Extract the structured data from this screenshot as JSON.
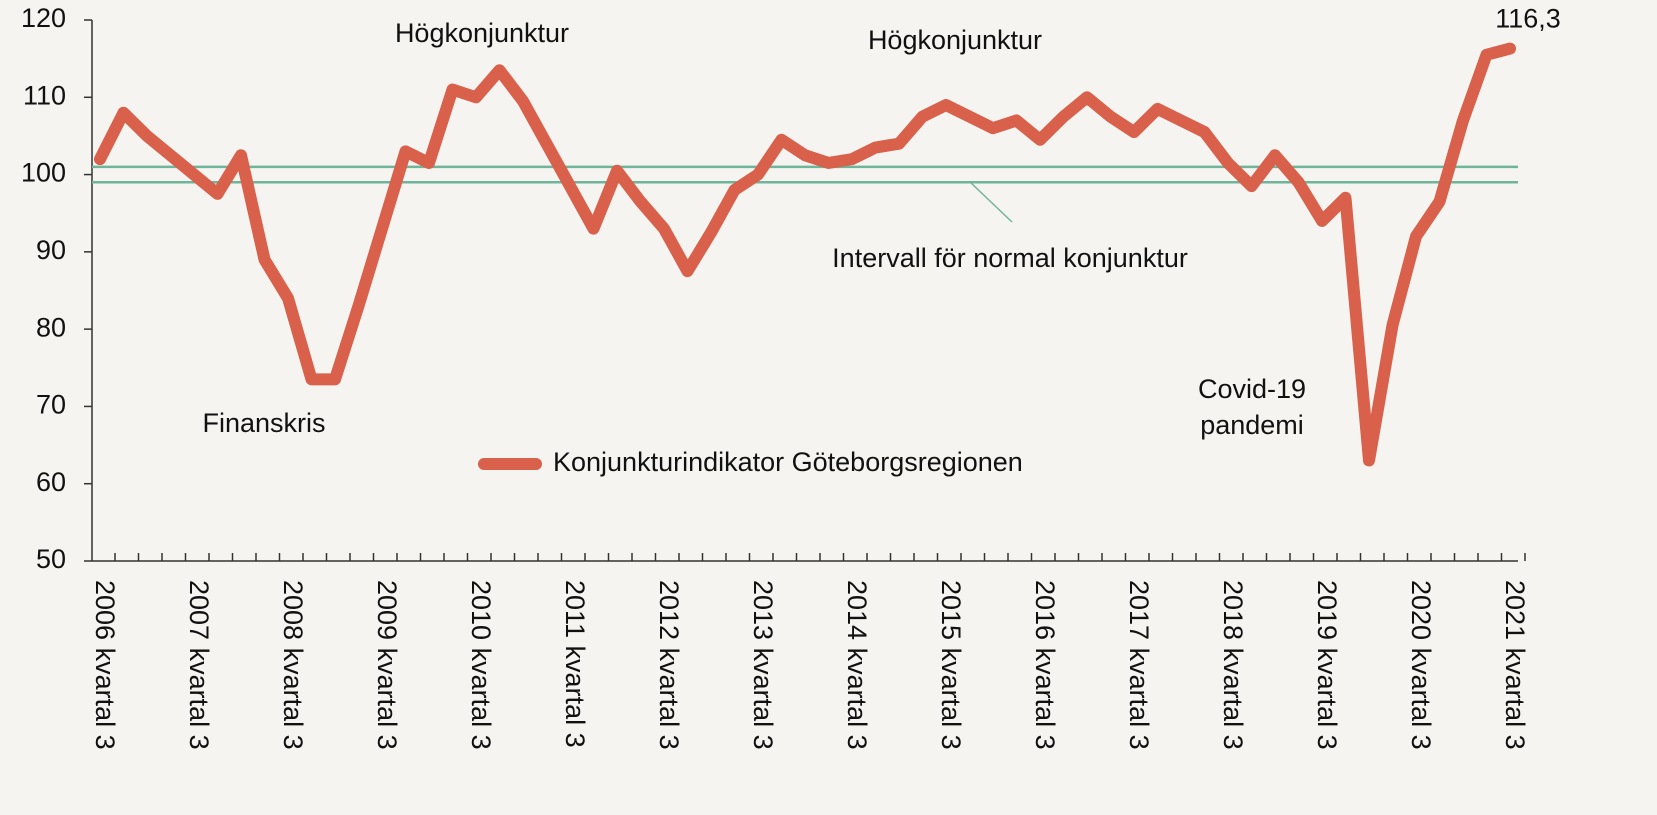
{
  "chart_data": {
    "type": "line",
    "categories": [
      "2006 kvartal 3",
      null,
      null,
      null,
      "2007 kvartal 3",
      null,
      null,
      null,
      "2008 kvartal 3",
      null,
      null,
      null,
      "2009 kvartal 3",
      null,
      null,
      null,
      "2010 kvartal 3",
      null,
      null,
      null,
      "2011 kvartal 3",
      null,
      null,
      null,
      "2012 kvartal 3",
      null,
      null,
      null,
      "2013 kvartal 3",
      null,
      null,
      null,
      "2014 kvartal 3",
      null,
      null,
      null,
      "2015 kvartal 3",
      null,
      null,
      null,
      "2016 kvartal 3",
      null,
      null,
      null,
      "2017 kvartal 3",
      null,
      null,
      null,
      "2018 kvartal 3",
      null,
      null,
      null,
      "2019 kvartal 3",
      null,
      null,
      null,
      "2020 kvartal 3",
      null,
      null,
      null,
      "2021 kvartal 3"
    ],
    "series": [
      {
        "name": "Konjunkturindikator Göteborgsregionen",
        "color": "#d9604a",
        "values": [
          102,
          108,
          105,
          102.5,
          100,
          97.5,
          102.5,
          89,
          84,
          73.5,
          73.5,
          83,
          93,
          103,
          101.5,
          111,
          110,
          113.5,
          109.5,
          104,
          98.5,
          93,
          100.5,
          96.5,
          93,
          87.5,
          92.5,
          98,
          100,
          104.5,
          102.5,
          101.5,
          102,
          103.5,
          104,
          107.5,
          109,
          107.5,
          106,
          107,
          104.5,
          107.5,
          110,
          107.5,
          105.5,
          108.5,
          107,
          105.5,
          101.5,
          98.5,
          102.5,
          99,
          94,
          97,
          63,
          80.5,
          92,
          96.5,
          107,
          115.5,
          116.3
        ],
        "value_labels": [
          null,
          null,
          null,
          null,
          null,
          null,
          null,
          null,
          null,
          null,
          null,
          null,
          null,
          null,
          null,
          null,
          null,
          null,
          null,
          null,
          null,
          null,
          null,
          null,
          null,
          null,
          null,
          null,
          null,
          null,
          null,
          null,
          null,
          null,
          null,
          null,
          null,
          null,
          null,
          null,
          null,
          null,
          null,
          null,
          null,
          null,
          null,
          null,
          null,
          null,
          null,
          null,
          null,
          null,
          null,
          null,
          null,
          null,
          null,
          null,
          "116,3"
        ]
      }
    ],
    "reference_lines": [
      {
        "value": 101
      },
      {
        "value": 99
      }
    ],
    "reference_color": "#6fb59a",
    "annotations": [
      {
        "lines": [
          "Högkonjunktur"
        ]
      },
      {
        "lines": [
          "Högkonjunktur"
        ]
      },
      {
        "lines": [
          "Finanskris"
        ]
      },
      {
        "lines": [
          "Intervall för normal konjunktur"
        ]
      },
      {
        "lines": [
          "Covid-19",
          "pandemi"
        ]
      }
    ],
    "ylim": [
      50,
      120
    ],
    "yticks": [
      50,
      60,
      70,
      80,
      90,
      100,
      110,
      120
    ],
    "grid": false
  }
}
